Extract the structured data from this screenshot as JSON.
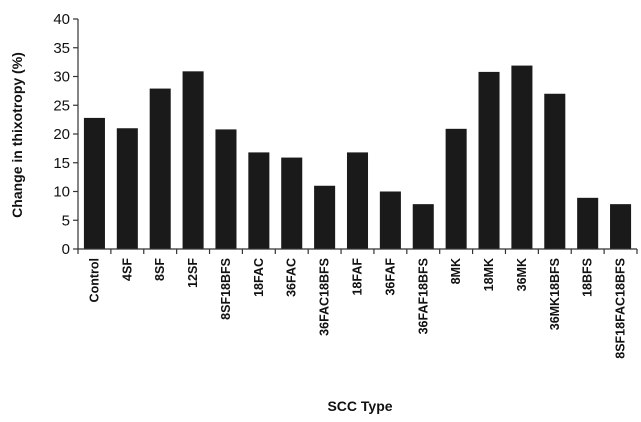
{
  "chart_data": {
    "type": "bar",
    "categories": [
      "Control",
      "4SF",
      "8SF",
      "12SF",
      "8SF18BFS",
      "18FAC",
      "36FAC",
      "36FAC18BFS",
      "18FAF",
      "36FAF",
      "36FAF18BFS",
      "8MK",
      "18MK",
      "36MK",
      "36MK18BFS",
      "18BFS",
      "8SF18FAC18BFS"
    ],
    "values": [
      22.8,
      21,
      27.9,
      30.9,
      20.8,
      16.8,
      15.9,
      11,
      16.8,
      10,
      7.8,
      20.9,
      30.8,
      31.9,
      27,
      8.9,
      7.8
    ],
    "title": "",
    "xlabel": "SCC Type",
    "ylabel": "Change in thixotropy (%)",
    "ylim": [
      0,
      40
    ],
    "yticks": [
      0,
      5,
      10,
      15,
      20,
      25,
      30,
      35,
      40
    ],
    "grid": false,
    "legend": "none",
    "bar_color": "#1a1a1a",
    "axis_color": "#333333"
  }
}
